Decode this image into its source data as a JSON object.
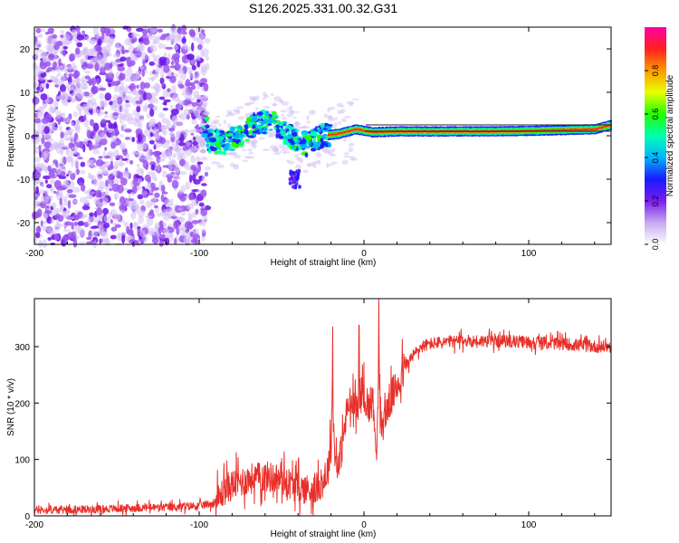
{
  "figure": {
    "title": "S126.2025.331.00.32.G31"
  },
  "chart_data": [
    {
      "type": "heatmap",
      "title": "S126.2025.331.00.32.G31",
      "xlabel": "Height of straight line (km)",
      "ylabel": "Frequency (Hz)",
      "xlim": [
        -200,
        150
      ],
      "ylim": [
        -25,
        25
      ],
      "xticks": [
        -200,
        -100,
        0,
        100
      ],
      "xtick_labels": [
        "-200",
        "-100",
        "0",
        "100"
      ],
      "yticks": [
        -20,
        -10,
        0,
        10,
        20
      ],
      "ytick_labels": [
        "-20",
        "-10",
        "0",
        "10",
        "20"
      ],
      "colorbar": {
        "label": "Normalized spectral amplitude",
        "range": [
          0,
          1
        ],
        "ticks": [
          0.0,
          0.2,
          0.4,
          0.6,
          0.8
        ],
        "tick_labels": [
          "0.0",
          "0.2",
          "0.4",
          "0.6",
          "0.8"
        ],
        "colormap": [
          "#ffffff",
          "#c9a8f0",
          "#7a1cf0",
          "#1a1aff",
          "#00b4ff",
          "#00ffb0",
          "#22ff00",
          "#e8ff00",
          "#ff9900",
          "#ff2020",
          "#ff00a0"
        ]
      },
      "ridge_frequency_hz": [
        {
          "x": -95,
          "f": -1
        },
        {
          "x": -85,
          "f": -1.5
        },
        {
          "x": -75,
          "f": 0
        },
        {
          "x": -65,
          "f": 3
        },
        {
          "x": -55,
          "f": 3
        },
        {
          "x": -45,
          "f": 0
        },
        {
          "x": -35,
          "f": -2
        },
        {
          "x": -25,
          "f": 0
        },
        {
          "x": -15,
          "f": 0.5
        },
        {
          "x": -5,
          "f": 1.5
        },
        {
          "x": 5,
          "f": 0.8
        },
        {
          "x": 20,
          "f": 1
        },
        {
          "x": 50,
          "f": 1
        },
        {
          "x": 80,
          "f": 1
        },
        {
          "x": 110,
          "f": 1.2
        },
        {
          "x": 140,
          "f": 1.5
        },
        {
          "x": 150,
          "f": 2.5
        }
      ],
      "secondary_blob": {
        "x": -42,
        "f": -10
      }
    },
    {
      "type": "line",
      "xlabel": "Height of straight line (km)",
      "ylabel": "SNR (10 * v/v)",
      "xlim": [
        -200,
        150
      ],
      "ylim": [
        0,
        385
      ],
      "xticks": [
        -200,
        -100,
        0,
        100
      ],
      "xtick_labels": [
        "-200",
        "-100",
        "0",
        "100"
      ],
      "yticks": [
        0,
        100,
        200,
        300
      ],
      "ytick_labels": [
        "0",
        "100",
        "200",
        "300"
      ],
      "series": [
        {
          "name": "SNR",
          "color": "#e8302a",
          "x": [
            -200,
            -160,
            -140,
            -120,
            -100,
            -92,
            -88,
            -85,
            -80,
            -70,
            -60,
            -50,
            -40,
            -30,
            -25,
            -22,
            -20,
            -19,
            -18,
            -15,
            -12,
            -10,
            -8,
            -5,
            -3,
            0,
            3,
            5,
            8,
            9,
            10,
            12,
            15,
            20,
            25,
            30,
            35,
            40,
            50,
            60,
            80,
            100,
            120,
            140,
            150
          ],
          "y": [
            10,
            12,
            14,
            15,
            18,
            22,
            30,
            45,
            55,
            65,
            70,
            65,
            50,
            45,
            60,
            80,
            120,
            250,
            110,
            90,
            150,
            190,
            200,
            180,
            210,
            220,
            190,
            210,
            120,
            300,
            150,
            170,
            200,
            230,
            265,
            285,
            300,
            305,
            308,
            310,
            310,
            308,
            305,
            300,
            300
          ]
        }
      ],
      "spikes": [
        {
          "x": -19,
          "y": 335
        },
        {
          "x": -3,
          "y": 338
        },
        {
          "x": 9,
          "y": 385
        }
      ]
    }
  ]
}
